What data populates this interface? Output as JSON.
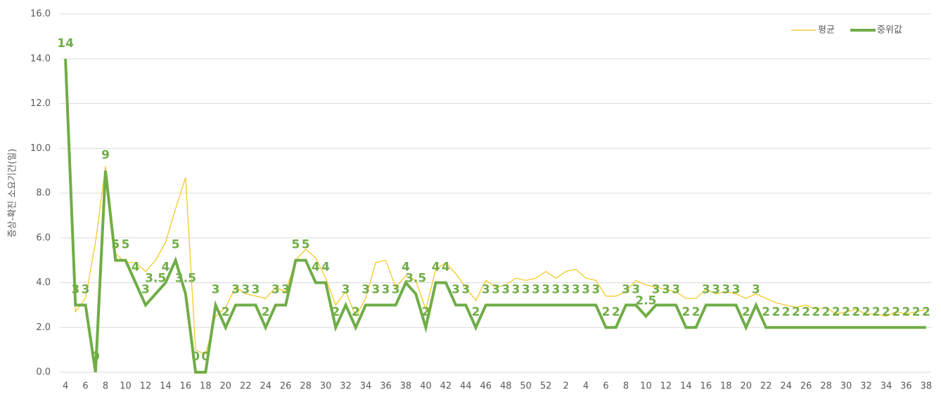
{
  "chart_data": {
    "type": "line",
    "y_label": "증상-확진 소요기간(일)",
    "categories": [
      4,
      null,
      6,
      null,
      8,
      null,
      10,
      null,
      12,
      null,
      14,
      null,
      16,
      null,
      18,
      null,
      20,
      null,
      22,
      null,
      24,
      null,
      26,
      null,
      28,
      null,
      30,
      null,
      32,
      null,
      34,
      null,
      36,
      null,
      38,
      null,
      40,
      null,
      42,
      null,
      44,
      null,
      46,
      null,
      48,
      null,
      50,
      null,
      52,
      null,
      2,
      null,
      4,
      null,
      6,
      null,
      8,
      null,
      10,
      null,
      12,
      null,
      14,
      null,
      16,
      null,
      18,
      null,
      20,
      null,
      22,
      null,
      24,
      null,
      26,
      null,
      28,
      null,
      30,
      null,
      32,
      null,
      34,
      null,
      36,
      null,
      38
    ],
    "series": [
      {
        "name": "평균",
        "color": "#f5c518",
        "width": 1.2,
        "data_labels": false,
        "values": [
          14,
          2.7,
          3.3,
          5.8,
          9.2,
          5.3,
          4.9,
          4.9,
          4.5,
          5.0,
          5.8,
          7.3,
          8.7,
          1.0,
          0.8,
          2.5,
          2.9,
          3.8,
          3.5,
          3.4,
          3.3,
          3.8,
          3.6,
          5.0,
          5.5,
          5.1,
          4.2,
          3.0,
          3.6,
          2.5,
          3.3,
          4.9,
          5.0,
          3.8,
          4.3,
          4.1,
          2.8,
          4.6,
          4.9,
          4.4,
          3.8,
          3.2,
          4.1,
          3.8,
          3.9,
          4.2,
          4.1,
          4.2,
          4.5,
          4.2,
          4.5,
          4.6,
          4.2,
          4.1,
          3.4,
          3.4,
          3.6,
          4.1,
          3.9,
          3.8,
          3.7,
          3.6,
          3.3,
          3.3,
          3.7,
          3.5,
          3.6,
          3.5,
          3.3,
          3.5,
          3.3,
          3.1,
          3.0,
          2.9,
          3.0,
          2.8,
          2.9,
          2.6,
          2.7,
          2.8,
          2.6,
          2.6,
          2.5,
          2.7,
          2.6,
          2.7,
          2.8
        ]
      },
      {
        "name": "중위값",
        "color": "#70ad47",
        "width": 4,
        "data_labels": true,
        "values": [
          14,
          3,
          3,
          0,
          9,
          5,
          5,
          4,
          3,
          3.5,
          4,
          5,
          3.5,
          0,
          0,
          3,
          2,
          3,
          3,
          3,
          2,
          3,
          3,
          5,
          5,
          4,
          4,
          2,
          3,
          2,
          3,
          3,
          3,
          3,
          4,
          3.5,
          2,
          4,
          4,
          3,
          3,
          2,
          3,
          3,
          3,
          3,
          3,
          3,
          3,
          3,
          3,
          3,
          3,
          3,
          2,
          2,
          3,
          3,
          2.5,
          3,
          3,
          3,
          2,
          2,
          3,
          3,
          3,
          3,
          2,
          3,
          2,
          2,
          2,
          2,
          2,
          2,
          2,
          2,
          2,
          2,
          2,
          2,
          2,
          2,
          2,
          2,
          2
        ]
      }
    ],
    "ylim": [
      0,
      16
    ],
    "yticks": [
      {
        "value": 0,
        "label": "0.0"
      },
      {
        "value": 2,
        "label": "2.0"
      },
      {
        "value": 4,
        "label": "4.0"
      },
      {
        "value": 6,
        "label": "6.0"
      },
      {
        "value": 8,
        "label": "8.0"
      },
      {
        "value": 10,
        "label": "10.0"
      },
      {
        "value": 12,
        "label": "12.0"
      },
      {
        "value": 14,
        "label": "14.0"
      },
      {
        "value": 16,
        "label": "16.0"
      }
    ],
    "grid": true,
    "legend": "top-right"
  }
}
